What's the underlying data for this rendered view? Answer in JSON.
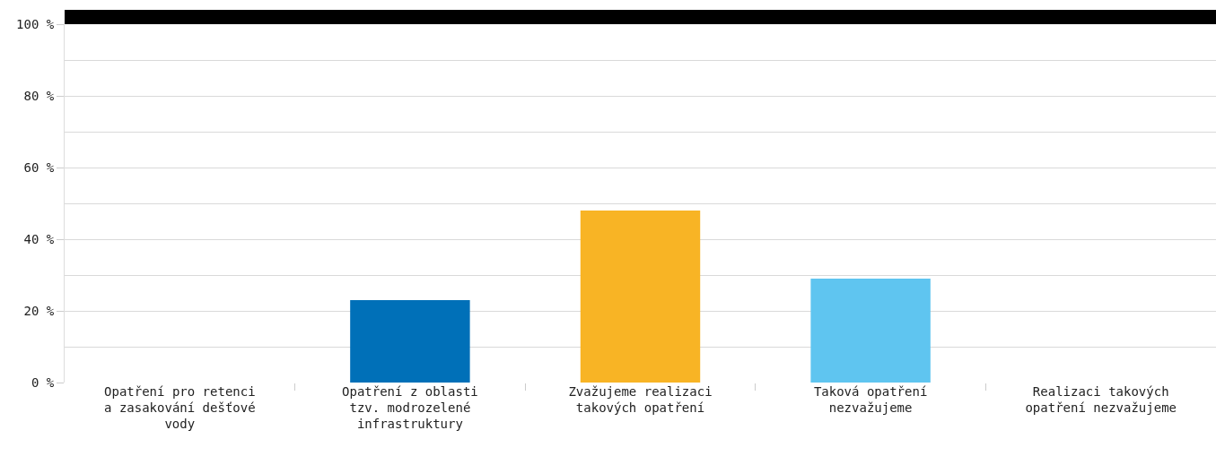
{
  "chart_data": {
    "type": "bar",
    "categories": [
      "Opatření pro retenci a zasakování dešťové vody",
      "Opatření z oblasti tzv. modrozelené infrastruktury",
      "Zvažujeme realizaci takových opatření",
      "Taková opatření nezvažujeme",
      "Realizaci takových opatření nezvažujeme"
    ],
    "values": [
      0,
      23,
      48,
      29,
      0
    ],
    "colors": [
      "#000000",
      "#0070b8",
      "#f8b425",
      "#5fc5f0",
      "#000000"
    ],
    "ylim": [
      0,
      100
    ],
    "yticks": [
      {
        "value": 0,
        "label": "0 %"
      },
      {
        "value": 20,
        "label": "20 %"
      },
      {
        "value": 40,
        "label": "40 %"
      },
      {
        "value": 60,
        "label": "60 %"
      },
      {
        "value": 80,
        "label": "80 %"
      },
      {
        "value": 100,
        "label": "100 %"
      }
    ],
    "grid": "y"
  }
}
